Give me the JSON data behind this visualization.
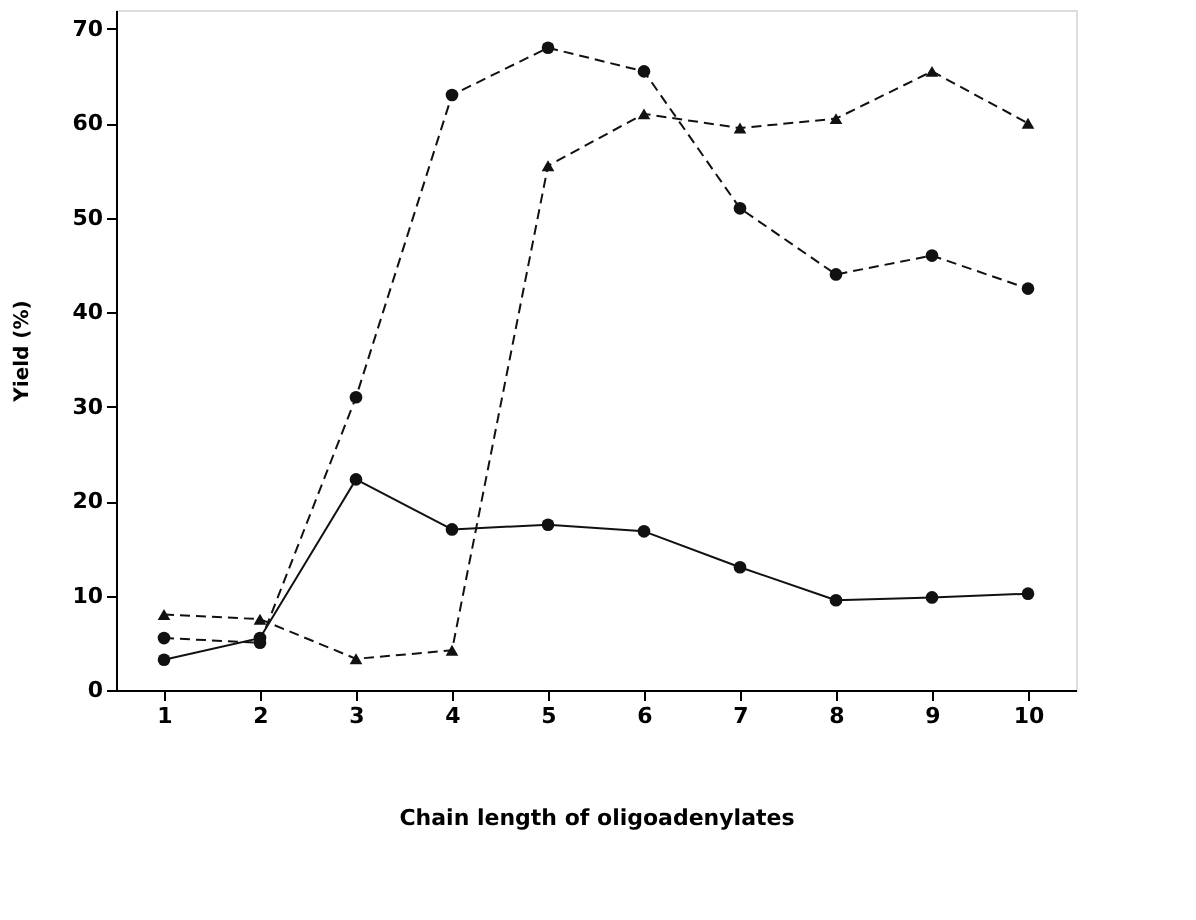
{
  "chart_data": {
    "type": "line",
    "xlabel": "Chain length of oligoadenylates",
    "ylabel": "Yield (%)",
    "x": [
      1,
      2,
      3,
      4,
      5,
      6,
      7,
      8,
      9,
      10
    ],
    "xlim": [
      0.5,
      10.5
    ],
    "xticks": [
      1,
      2,
      3,
      4,
      5,
      6,
      7,
      8,
      9,
      10
    ],
    "ylim": [
      0,
      72
    ],
    "yticks": [
      0,
      10,
      20,
      30,
      40,
      50,
      60,
      70
    ],
    "grid": false,
    "series": [
      {
        "color": "#111111",
        "marker": "circle",
        "line_style": "dashed",
        "values": [
          5.5,
          5,
          31,
          63,
          68,
          65.5,
          51,
          44,
          46,
          42.5
        ]
      },
      {
        "color": "#111111",
        "marker": "triangle",
        "line_style": "dashed",
        "values": [
          8,
          7.5,
          3.3,
          4.2,
          55.5,
          61,
          59.5,
          60.5,
          65.5,
          60
        ]
      },
      {
        "color": "#111111",
        "marker": "circle",
        "line_style": "solid",
        "values": [
          3.2,
          5.5,
          22.3,
          17,
          17.5,
          16.8,
          13,
          9.5,
          9.8,
          10.2
        ]
      }
    ]
  }
}
